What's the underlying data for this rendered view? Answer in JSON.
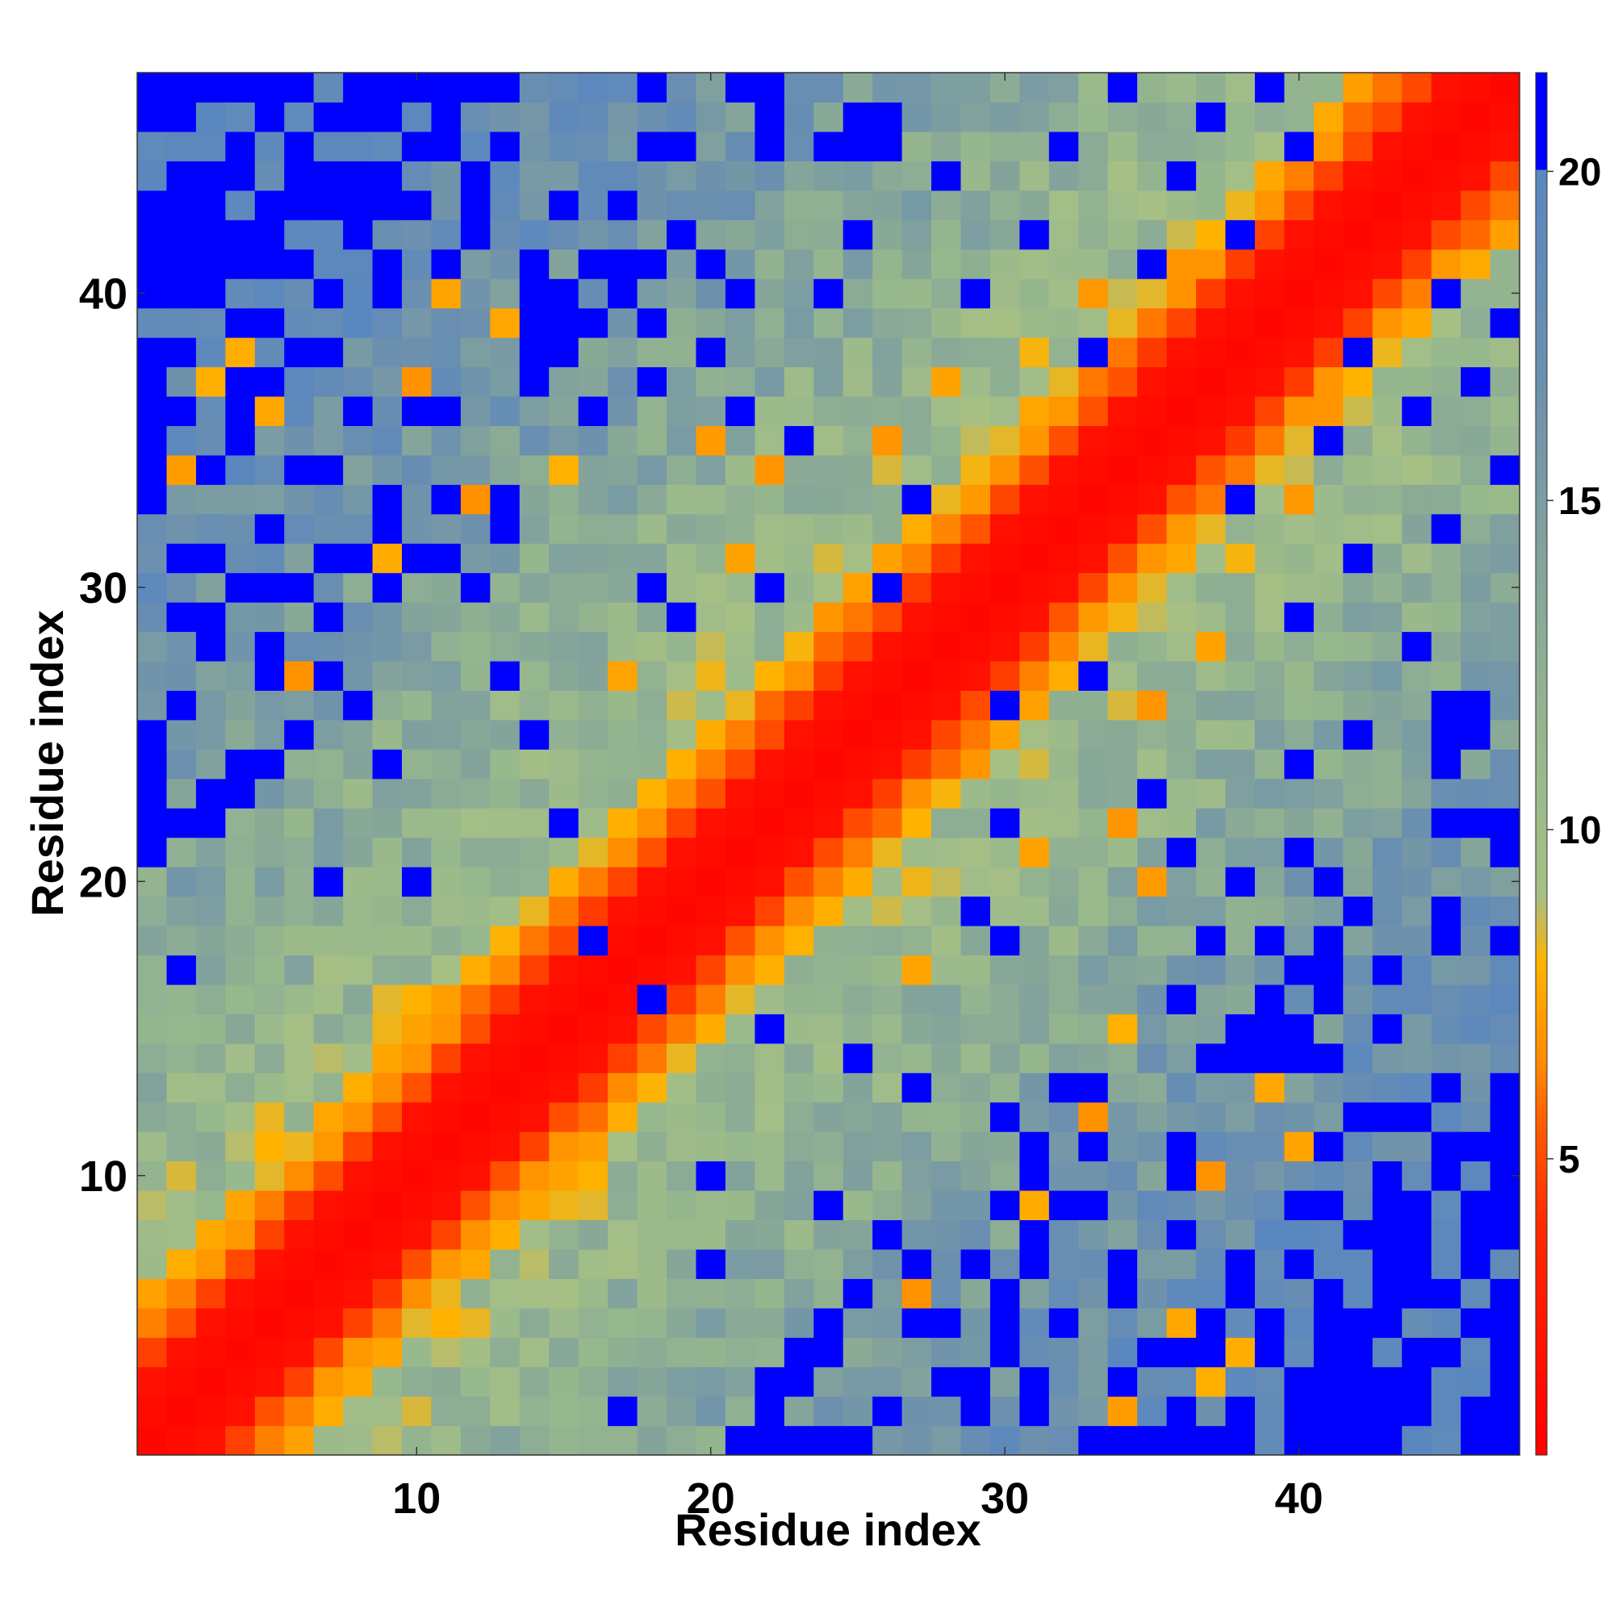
{
  "chart_data": {
    "type": "heatmap",
    "xlabel": "Residue index",
    "ylabel": "Residue index",
    "n": 47,
    "xlim": [
      0.5,
      47.5
    ],
    "ylim": [
      0.5,
      47.5
    ],
    "x_ticks": [
      10,
      20,
      30,
      40
    ],
    "y_ticks": [
      10,
      20,
      30,
      40
    ],
    "x_tick_labels": [
      "10",
      "20",
      "30",
      "40"
    ],
    "y_tick_labels": [
      "10",
      "20",
      "30",
      "40"
    ],
    "colorbar": {
      "range": [
        0.5,
        21.5
      ],
      "ticks": [
        5,
        10,
        15,
        20
      ],
      "tick_labels": [
        "5",
        "10",
        "15",
        "20"
      ],
      "placement": "right",
      "stops": [
        {
          "value": 0.5,
          "color": "#ff0000"
        },
        {
          "value": 4.0,
          "color": "#ff2a00"
        },
        {
          "value": 5.5,
          "color": "#ff5a00"
        },
        {
          "value": 6.5,
          "color": "#ff8c00"
        },
        {
          "value": 8.0,
          "color": "#ffb300"
        },
        {
          "value": 9.0,
          "color": "#a6bf85"
        },
        {
          "value": 11.0,
          "color": "#99b98c"
        },
        {
          "value": 14.0,
          "color": "#84a49b"
        },
        {
          "value": 17.0,
          "color": "#6b8faf"
        },
        {
          "value": 20.0,
          "color": "#5a87c0"
        },
        {
          "value": 20.01,
          "color": "#0000ff"
        },
        {
          "value": 21.5,
          "color": "#0000ff"
        }
      ]
    },
    "matrix_model": "symmetric distance map: values rise with sequence separation |i-j|; cells beyond ~20 shown saturated blue",
    "saturated_cells": [
      [
        1,
        22
      ],
      [
        1,
        23
      ],
      [
        1,
        24
      ],
      [
        1,
        25
      ],
      [
        2,
        17
      ],
      [
        3,
        22
      ],
      [
        3,
        23
      ],
      [
        4,
        30
      ],
      [
        5,
        28
      ],
      [
        6,
        25
      ],
      [
        7,
        20
      ],
      [
        8,
        26
      ],
      [
        9,
        24
      ],
      [
        10,
        20
      ],
      [
        12,
        30
      ],
      [
        13,
        27
      ],
      [
        14,
        25
      ],
      [
        15,
        22
      ],
      [
        16,
        18
      ],
      [
        18,
        30
      ],
      [
        19,
        29
      ],
      [
        20,
        38
      ],
      [
        21,
        36
      ],
      [
        22,
        30
      ],
      [
        23,
        35
      ],
      [
        24,
        40
      ],
      [
        25,
        42
      ],
      [
        26,
        30
      ],
      [
        27,
        33
      ],
      [
        28,
        44
      ],
      [
        29,
        40
      ],
      [
        31,
        42
      ],
      [
        32,
        45
      ],
      [
        33,
        38
      ],
      [
        34,
        47
      ],
      [
        35,
        41
      ],
      [
        36,
        44
      ],
      [
        37,
        46
      ],
      [
        38,
        42
      ],
      [
        39,
        47
      ],
      [
        40,
        45
      ]
    ],
    "warm_cells": [
      [
        2,
        34
      ],
      [
        3,
        37
      ],
      [
        4,
        38
      ],
      [
        5,
        36
      ],
      [
        6,
        27
      ],
      [
        9,
        31
      ],
      [
        10,
        37
      ],
      [
        11,
        40
      ],
      [
        12,
        33
      ],
      [
        13,
        39
      ],
      [
        15,
        34
      ],
      [
        17,
        27
      ],
      [
        18,
        30
      ],
      [
        20,
        35
      ],
      [
        21,
        31
      ],
      [
        22,
        34
      ],
      [
        24,
        29
      ],
      [
        26,
        35
      ],
      [
        28,
        37
      ],
      [
        33,
        40
      ],
      [
        36,
        41
      ]
    ]
  }
}
